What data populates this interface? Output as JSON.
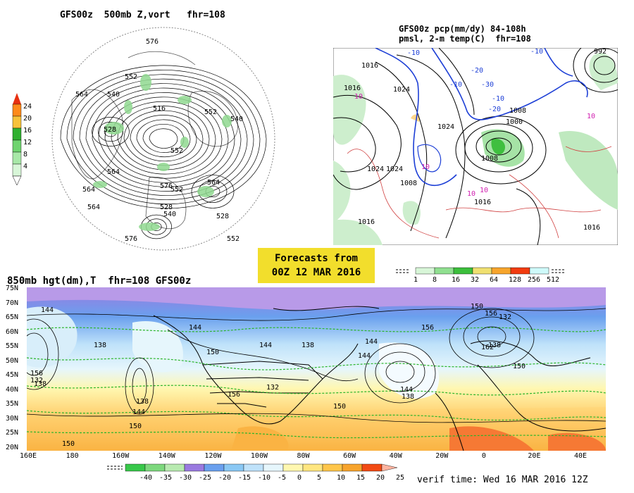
{
  "titles": {
    "polar": "GFS00z  500mb Z,vort   fhr=108",
    "precip_line1": "GFS00z pcp(mm/dy) 84-108h",
    "precip_line2": "pmsl, 2-m temp(C)  fhr=108",
    "hgt850": "850mb hgt(dm),T  fhr=108 GFS00z"
  },
  "forecast_box": {
    "line1": "Forecasts from",
    "line2": "00Z 12 MAR 2016"
  },
  "verif_time": "verif time: Wed 16 MAR 2016 12Z",
  "vort_legend": {
    "values": [
      "24",
      "20",
      "16",
      "12",
      "8",
      "4"
    ],
    "colors": [
      "#ff8a1a",
      "#f6c23a",
      "#2fb02f",
      "#6fd46f",
      "#a8e8a8",
      "#d8f6d8"
    ]
  },
  "precip_legend": {
    "values": [
      "1",
      "8",
      "16",
      "32",
      "64",
      "128",
      "256",
      "512"
    ],
    "colors": [
      "#d8f6d8",
      "#90e090",
      "#3cbf3c",
      "#f0e070",
      "#f7a52c",
      "#f23c10",
      "#cffafa"
    ]
  },
  "temp_legend": {
    "values": [
      "-40",
      "-35",
      "-30",
      "-25",
      "-20",
      "-15",
      "-10",
      "-5",
      "0",
      "5",
      "10",
      "15",
      "20",
      "25"
    ],
    "colors": [
      "#38c84a",
      "#7dd87d",
      "#b8eab0",
      "#9a7ae0",
      "#6aa0ee",
      "#8ac8f4",
      "#bfe2fa",
      "#e6f6fc",
      "#fff7b0",
      "#ffe680",
      "#ffc64a",
      "#f7a42c",
      "#f24a14",
      "#ffb4a0"
    ]
  },
  "polar_labels": [
    "576",
    "564",
    "552",
    "540",
    "552",
    "528",
    "516",
    "564",
    "576",
    "552",
    "564",
    "528",
    "540",
    "552",
    "528",
    "564",
    "576",
    "552",
    "564",
    "540"
  ],
  "precip_labels": {
    "isobars": [
      "1016",
      "1024",
      "1008",
      "1024",
      "1024",
      "1016",
      "1008",
      "1000",
      "1008",
      "1016",
      "1016",
      "992",
      "1024",
      "1016"
    ],
    "temps_blue": [
      "-10",
      "-20",
      "-30",
      "-10",
      "-20",
      "-10",
      "-10"
    ],
    "temps_mag": [
      "10",
      "10",
      "10",
      "10",
      "10"
    ]
  },
  "map850": {
    "lat_labels": [
      "75N",
      "70N",
      "65N",
      "60N",
      "55N",
      "50N",
      "45N",
      "40N",
      "35N",
      "30N",
      "25N",
      "20N"
    ],
    "lon_labels": [
      "160E",
      "180",
      "160W",
      "140W",
      "120W",
      "100W",
      "80W",
      "60W",
      "40W",
      "20W",
      "0",
      "20E",
      "40E"
    ],
    "contour_labels": [
      "144",
      "138",
      "144",
      "150",
      "144",
      "138",
      "144",
      "132",
      "138",
      "144",
      "150",
      "156",
      "150",
      "156",
      "162",
      "138",
      "144",
      "150",
      "156",
      "132",
      "138",
      "150",
      "132",
      "138",
      "150",
      "156",
      "144"
    ]
  }
}
